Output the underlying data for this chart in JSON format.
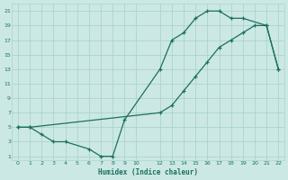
{
  "xlabel": "Humidex (Indice chaleur)",
  "bg_color": "#cce8e4",
  "grid_color": "#aad4cc",
  "line_color": "#1a7060",
  "xlim": [
    -0.5,
    22.5
  ],
  "ylim": [
    0.5,
    22
  ],
  "xticks": [
    0,
    1,
    2,
    3,
    4,
    5,
    6,
    7,
    8,
    9,
    10,
    12,
    13,
    14,
    15,
    16,
    17,
    18,
    19,
    20,
    21,
    22
  ],
  "yticks": [
    1,
    3,
    5,
    7,
    9,
    11,
    13,
    15,
    17,
    19,
    21
  ],
  "curve1_x": [
    0,
    1,
    2,
    3,
    4,
    6,
    7,
    8,
    9,
    12,
    13,
    14,
    15,
    16,
    17,
    18,
    19,
    21,
    22
  ],
  "curve1_y": [
    5,
    5,
    4,
    3,
    3,
    2,
    1,
    1,
    6,
    13,
    17,
    18,
    20,
    21,
    21,
    20,
    20,
    19,
    13
  ],
  "curve2_x": [
    0,
    1,
    12,
    13,
    14,
    15,
    16,
    17,
    18,
    19,
    20,
    21,
    22
  ],
  "curve2_y": [
    5,
    5,
    7,
    8,
    10,
    12,
    14,
    16,
    17,
    18,
    19,
    19,
    13
  ]
}
